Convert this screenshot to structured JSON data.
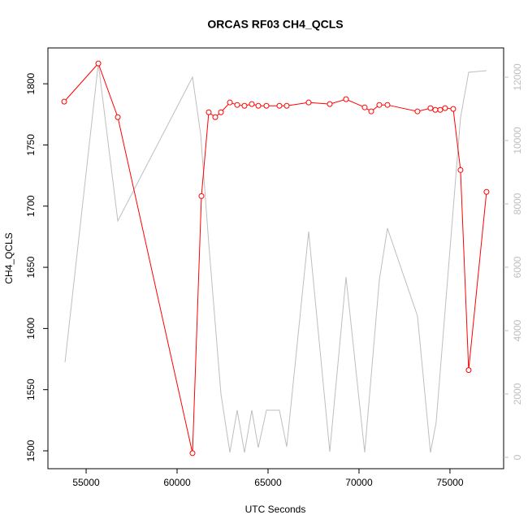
{
  "chart_data": {
    "type": "line",
    "title": "ORCAS RF03 CH4_QCLS",
    "x_label": "UTC Seconds",
    "y_label": "CH4_QCLS",
    "xlim": [
      52900,
      77950
    ],
    "ylim": [
      1485.4,
      1829.3
    ],
    "y2lim": [
      -359,
      12923
    ],
    "xticks": [
      55000,
      60000,
      65000,
      70000,
      75000
    ],
    "yticks": [
      1500,
      1550,
      1600,
      1650,
      1700,
      1750,
      1800
    ],
    "y2ticks": [
      0,
      2000,
      4000,
      6000,
      8000,
      10000,
      12000
    ],
    "y2_color": "#bebebe",
    "series": [
      {
        "color": "#bebebe",
        "axis": "y2",
        "markers": false,
        "x": [
          53839,
          55670,
          56741,
          60848,
          61295,
          61741,
          62411,
          62902,
          63304,
          63705,
          64107,
          64464,
          64911,
          65625,
          66027,
          67232,
          68393,
          69286,
          70313,
          71116,
          71563,
          73214,
          73929,
          74241,
          75580,
          76027,
          77009
        ],
        "values": [
          3000,
          12436,
          7462,
          12000,
          10205,
          6744,
          2000,
          154,
          1487,
          154,
          1487,
          308,
          1487,
          1487,
          333,
          7128,
          179,
          5692,
          154,
          5590,
          7231,
          4462,
          154,
          1103,
          10718,
          12154,
          12205
        ]
      },
      {
        "color": "#ff0000",
        "axis": "y",
        "markers": true,
        "x": [
          53795,
          55670,
          56741,
          60848,
          61339,
          61741,
          62098,
          62411,
          62902,
          63304,
          63705,
          64107,
          64464,
          64911,
          65625,
          66027,
          67232,
          68393,
          69286,
          70313,
          70670,
          71116,
          71563,
          73214,
          73929,
          74196,
          74464,
          74732,
          75179,
          75580,
          76027,
          77009
        ],
        "values": [
          1785.4,
          1816.6,
          1772.7,
          1498.1,
          1708.2,
          1776.7,
          1772.7,
          1776.7,
          1784.7,
          1782.7,
          1782.0,
          1783.4,
          1782.0,
          1782.0,
          1782.0,
          1782.0,
          1784.7,
          1783.4,
          1787.4,
          1780.7,
          1777.4,
          1782.7,
          1782.7,
          1777.4,
          1780.1,
          1778.7,
          1778.7,
          1780.1,
          1779.4,
          1729.5,
          1566.0,
          1711.6
        ]
      }
    ]
  }
}
